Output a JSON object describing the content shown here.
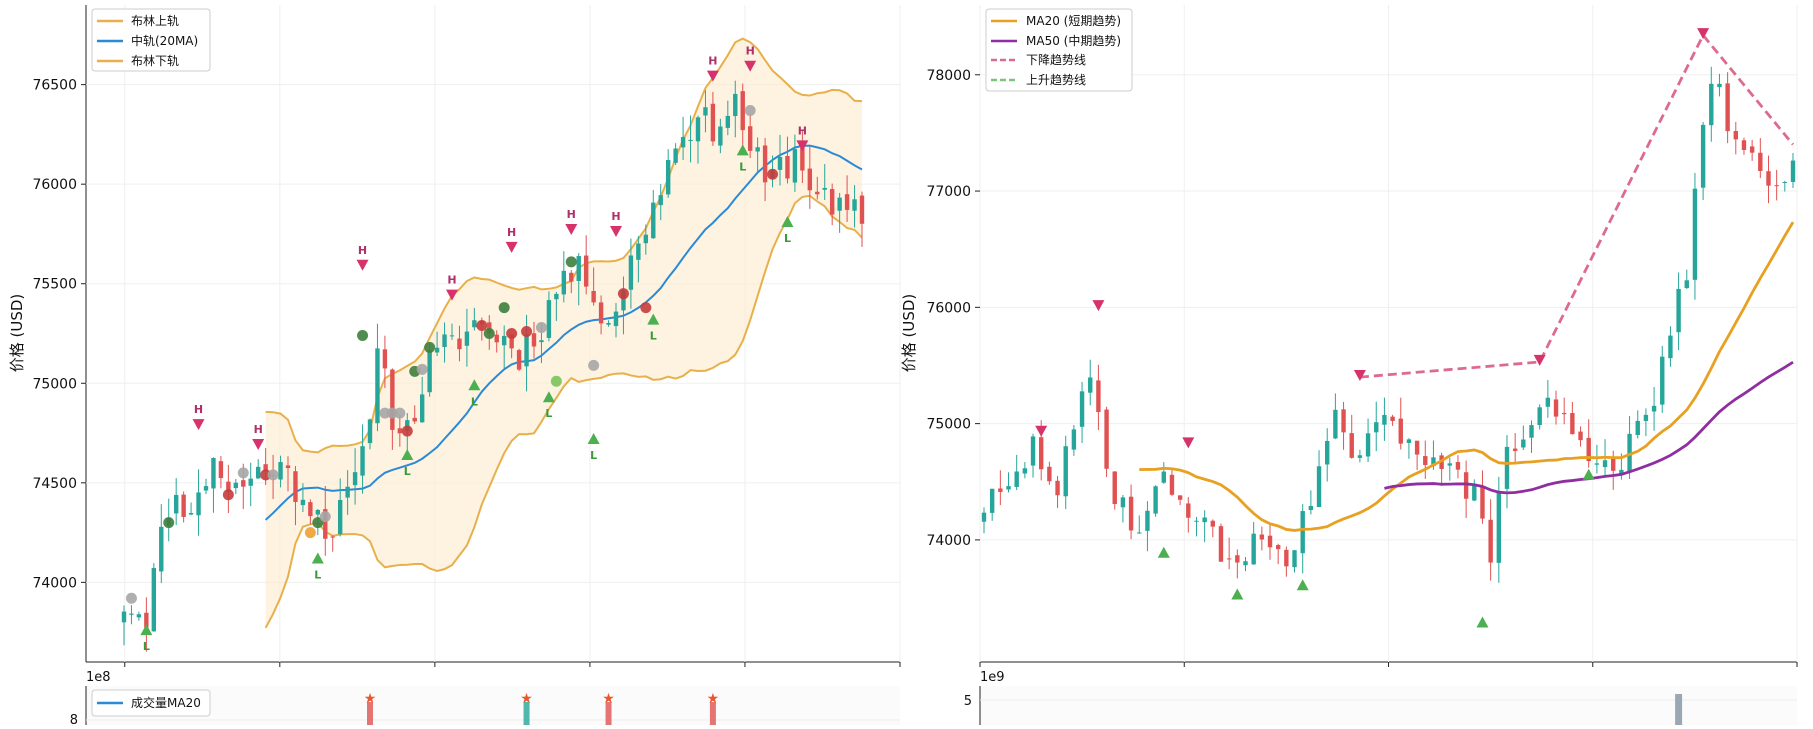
{
  "chart_data": [
    {
      "type": "candlestick",
      "panel": "left-top",
      "ylabel": "价格 (USD)",
      "ylim": [
        73600,
        76900
      ],
      "yticks": [
        74000,
        74500,
        75000,
        75500,
        76000,
        76500
      ],
      "x_count": 100,
      "grid": true,
      "legend_position": "top-left",
      "legend": [
        {
          "label": "布林上轨",
          "color": "#e8b04a",
          "style": "solid"
        },
        {
          "label": "中轨(20MA)",
          "color": "#2b8ad6",
          "style": "solid"
        },
        {
          "label": "布林下轨",
          "color": "#e8b04a",
          "style": "solid"
        }
      ],
      "up_color": "#26a69a",
      "down_color": "#e05252",
      "anchors": [
        [
          0,
          73900
        ],
        [
          3,
          73850
        ],
        [
          6,
          74400
        ],
        [
          10,
          74400
        ],
        [
          12,
          74650
        ],
        [
          14,
          74450
        ],
        [
          18,
          74550
        ],
        [
          20,
          74600
        ],
        [
          24,
          74450
        ],
        [
          28,
          74250
        ],
        [
          32,
          74600
        ],
        [
          34,
          75200
        ],
        [
          36,
          74850
        ],
        [
          38,
          74750
        ],
        [
          41,
          75100
        ],
        [
          44,
          75200
        ],
        [
          47,
          75300
        ],
        [
          50,
          75250
        ],
        [
          53,
          75150
        ],
        [
          56,
          75300
        ],
        [
          59,
          75550
        ],
        [
          62,
          75550
        ],
        [
          65,
          75300
        ],
        [
          70,
          75800
        ],
        [
          75,
          76300
        ],
        [
          79,
          76300
        ],
        [
          82,
          76400
        ],
        [
          86,
          76000
        ],
        [
          90,
          76150
        ],
        [
          95,
          75850
        ]
      ],
      "bollinger": {
        "start": 19,
        "window": 20,
        "k": 2
      },
      "peaks": [
        {
          "x": 10,
          "y": 74790,
          "label": "H"
        },
        {
          "x": 18,
          "y": 74690,
          "label": "H"
        },
        {
          "x": 32,
          "y": 75590,
          "label": "H"
        },
        {
          "x": 44,
          "y": 75440,
          "label": "H"
        },
        {
          "x": 52,
          "y": 75680,
          "label": "H"
        },
        {
          "x": 60,
          "y": 75770,
          "label": "H"
        },
        {
          "x": 66,
          "y": 75760,
          "label": "H"
        },
        {
          "x": 79,
          "y": 76540,
          "label": "H"
        },
        {
          "x": 84,
          "y": 76590,
          "label": "H"
        },
        {
          "x": 91,
          "y": 76190,
          "label": "H"
        }
      ],
      "troughs": [
        {
          "x": 3,
          "y": 73760,
          "label": "L"
        },
        {
          "x": 26,
          "y": 74120,
          "label": "L"
        },
        {
          "x": 38,
          "y": 74640,
          "label": "L"
        },
        {
          "x": 47,
          "y": 74990,
          "label": "L"
        },
        {
          "x": 57,
          "y": 74930,
          "label": "L"
        },
        {
          "x": 63,
          "y": 74720,
          "label": "L"
        },
        {
          "x": 71,
          "y": 75320,
          "label": "L"
        },
        {
          "x": 83,
          "y": 76170,
          "label": "L"
        },
        {
          "x": 89,
          "y": 75810,
          "label": "L"
        }
      ],
      "signals": [
        {
          "x": 1,
          "y": 73920,
          "kind": "neutral"
        },
        {
          "x": 6,
          "y": 74300,
          "kind": "buy"
        },
        {
          "x": 14,
          "y": 74440,
          "kind": "sell"
        },
        {
          "x": 16,
          "y": 74550,
          "kind": "neutral"
        },
        {
          "x": 19,
          "y": 74540,
          "kind": "sell"
        },
        {
          "x": 20,
          "y": 74540,
          "kind": "neutral"
        },
        {
          "x": 25,
          "y": 74250,
          "kind": "alert"
        },
        {
          "x": 26,
          "y": 74300,
          "kind": "buy"
        },
        {
          "x": 27,
          "y": 74330,
          "kind": "neutral"
        },
        {
          "x": 32,
          "y": 75240,
          "kind": "buy"
        },
        {
          "x": 35,
          "y": 74850,
          "kind": "neutral"
        },
        {
          "x": 36,
          "y": 74850,
          "kind": "neutral"
        },
        {
          "x": 37,
          "y": 74850,
          "kind": "neutral"
        },
        {
          "x": 38,
          "y": 74760,
          "kind": "sell"
        },
        {
          "x": 39,
          "y": 75060,
          "kind": "buy"
        },
        {
          "x": 40,
          "y": 75070,
          "kind": "neutral"
        },
        {
          "x": 41,
          "y": 75180,
          "kind": "buy"
        },
        {
          "x": 48,
          "y": 75290,
          "kind": "sell"
        },
        {
          "x": 49,
          "y": 75250,
          "kind": "buy"
        },
        {
          "x": 51,
          "y": 75380,
          "kind": "buy"
        },
        {
          "x": 52,
          "y": 75250,
          "kind": "sell"
        },
        {
          "x": 54,
          "y": 75260,
          "kind": "sell"
        },
        {
          "x": 56,
          "y": 75280,
          "kind": "neutral"
        },
        {
          "x": 58,
          "y": 75010,
          "kind": "lime"
        },
        {
          "x": 60,
          "y": 75610,
          "kind": "buy"
        },
        {
          "x": 63,
          "y": 75090,
          "kind": "neutral"
        },
        {
          "x": 67,
          "y": 75450,
          "kind": "sell"
        },
        {
          "x": 70,
          "y": 75380,
          "kind": "sell"
        },
        {
          "x": 84,
          "y": 76370,
          "kind": "neutral"
        },
        {
          "x": 87,
          "y": 76050,
          "kind": "sell"
        }
      ],
      "volume_panel": {
        "offset_label": "1e8",
        "ytick": "8",
        "legend": [
          {
            "label": "成交量MA20",
            "color": "#2b8ad6"
          }
        ],
        "spikes": [
          {
            "x": 33,
            "color": "#e05252"
          },
          {
            "x": 54,
            "color": "#26a69a"
          },
          {
            "x": 65,
            "color": "#e05252"
          },
          {
            "x": 79,
            "color": "#e05252"
          }
        ]
      }
    },
    {
      "type": "candlestick",
      "panel": "right-top",
      "ylabel": "价格 (USD)",
      "ylim": [
        72950,
        78600
      ],
      "yticks": [
        74000,
        75000,
        76000,
        77000,
        78000
      ],
      "x_count": 100,
      "grid": true,
      "legend_position": "top-left",
      "legend": [
        {
          "label": "MA20 (短期趋势)",
          "color": "#e8a020",
          "style": "solid"
        },
        {
          "label": "MA50 (中期趋势)",
          "color": "#8e2ea0",
          "style": "solid"
        },
        {
          "label": "下降趋势线",
          "color": "#dd6b8e",
          "style": "dashed"
        },
        {
          "label": "上升趋势线",
          "color": "#7cc47c",
          "style": "dashed"
        }
      ],
      "up_color": "#26a69a",
      "down_color": "#e05252",
      "anchors": [
        [
          0,
          74300
        ],
        [
          3,
          74400
        ],
        [
          6,
          74800
        ],
        [
          9,
          74450
        ],
        [
          13,
          75400
        ],
        [
          16,
          74400
        ],
        [
          19,
          74100
        ],
        [
          22,
          74500
        ],
        [
          25,
          74300
        ],
        [
          28,
          74000
        ],
        [
          31,
          73800
        ],
        [
          34,
          74000
        ],
        [
          37,
          73900
        ],
        [
          40,
          74300
        ],
        [
          43,
          75000
        ],
        [
          46,
          74700
        ],
        [
          49,
          75000
        ],
        [
          52,
          74900
        ],
        [
          55,
          74700
        ],
        [
          58,
          74500
        ],
        [
          61,
          74300
        ],
        [
          62,
          73900
        ],
        [
          64,
          74700
        ],
        [
          67,
          75000
        ],
        [
          69,
          75200
        ],
        [
          72,
          74900
        ],
        [
          75,
          74700
        ],
        [
          78,
          74700
        ],
        [
          81,
          75000
        ],
        [
          84,
          75800
        ],
        [
          86,
          76300
        ],
        [
          88,
          77500
        ],
        [
          89,
          78000
        ],
        [
          91,
          77600
        ],
        [
          93,
          77300
        ],
        [
          96,
          77100
        ],
        [
          99,
          77200
        ]
      ],
      "ma20": {
        "start": 19,
        "window": 20
      },
      "ma50": {
        "start": 49,
        "window": 50
      },
      "resistance_line": [
        [
          46,
          75400
        ],
        [
          68,
          75530
        ],
        [
          88,
          78340
        ],
        [
          99,
          77400
        ]
      ],
      "peaks": [
        {
          "x": 7,
          "y": 74930
        },
        {
          "x": 14,
          "y": 76010
        },
        {
          "x": 25,
          "y": 74830
        },
        {
          "x": 46,
          "y": 75410
        },
        {
          "x": 68,
          "y": 75540
        },
        {
          "x": 88,
          "y": 78350
        }
      ],
      "troughs": [
        {
          "x": 22,
          "y": 73890
        },
        {
          "x": 31,
          "y": 73530
        },
        {
          "x": 39,
          "y": 73610
        },
        {
          "x": 61,
          "y": 73290
        },
        {
          "x": 74,
          "y": 74560
        }
      ],
      "volume_panel": {
        "offset_label": "1e9",
        "ytick": "5",
        "spikes": [
          {
            "x": 85,
            "color": "#9aa8b4"
          }
        ]
      }
    }
  ]
}
